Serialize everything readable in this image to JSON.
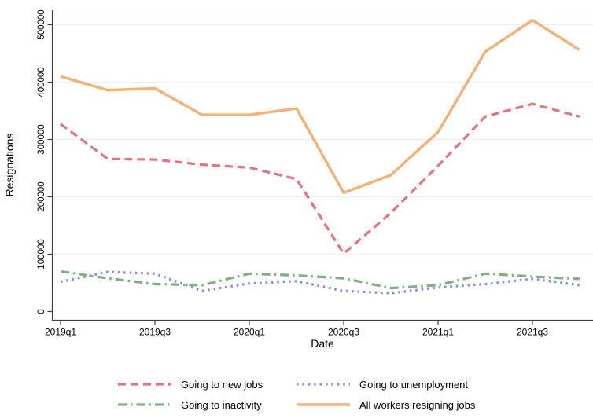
{
  "chart_data": {
    "type": "line",
    "title": "",
    "xlabel": "Date",
    "ylabel": "Resignations",
    "categories": [
      "2019q1",
      "2019q2",
      "2019q3",
      "2019q4",
      "2020q1",
      "2020q2",
      "2020q3",
      "2020q4",
      "2021q1",
      "2021q2",
      "2021q3",
      "2021q4"
    ],
    "x_tick_labels": [
      "2019q1",
      "2019q3",
      "2020q1",
      "2020q3",
      "2021q1",
      "2021q3"
    ],
    "yticks": [
      0,
      100000,
      200000,
      300000,
      400000,
      500000
    ],
    "ytick_labels": [
      "0",
      "100000",
      "200000",
      "300000",
      "400000",
      "500000"
    ],
    "ylim": [
      0,
      525000
    ],
    "grid": "horizontal",
    "legend_position": "bottom",
    "series": [
      {
        "name": "Going to new jobs",
        "style": "dashed",
        "color": "#e8737b",
        "values": [
          327000,
          266000,
          265000,
          256000,
          251000,
          231000,
          101000,
          172000,
          254000,
          340000,
          362000,
          340000
        ]
      },
      {
        "name": "Going to unemployment",
        "style": "dotted",
        "color": "#8a8aef",
        "values": [
          52000,
          69000,
          66000,
          36000,
          49000,
          53000,
          36000,
          32000,
          42000,
          48000,
          57000,
          46000
        ]
      },
      {
        "name": "Going to inactivity",
        "style": "dash-dot",
        "color": "#7cb27b",
        "values": [
          70000,
          58000,
          48000,
          46000,
          66000,
          63000,
          58000,
          41000,
          46000,
          66000,
          61000,
          57000
        ]
      },
      {
        "name": "All workers resigning jobs",
        "style": "solid",
        "color": "#f4b173",
        "values": [
          410000,
          386000,
          389000,
          343000,
          343000,
          354000,
          207000,
          238000,
          313000,
          453000,
          508000,
          456000
        ]
      }
    ]
  }
}
